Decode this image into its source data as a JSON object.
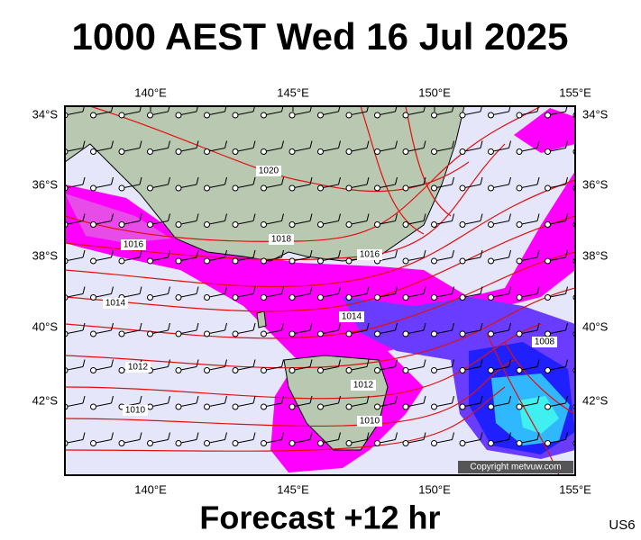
{
  "header": {
    "title": "1000 AEST Wed 16 Jul 2025"
  },
  "map": {
    "lon_labels": [
      "140°E",
      "145°E",
      "150°E",
      "155°E"
    ],
    "lat_labels": [
      "34°S",
      "36°S",
      "38°S",
      "40°S",
      "42°S"
    ],
    "isobar_labels": [
      "1020",
      "1018",
      "1016",
      "1016",
      "1014",
      "1014",
      "1012",
      "1012",
      "1010",
      "1010",
      "1008"
    ],
    "copyright": "Copyright metvuw.com"
  },
  "footer": {
    "forecast": "Forecast +12 hr",
    "code": "US6"
  }
}
